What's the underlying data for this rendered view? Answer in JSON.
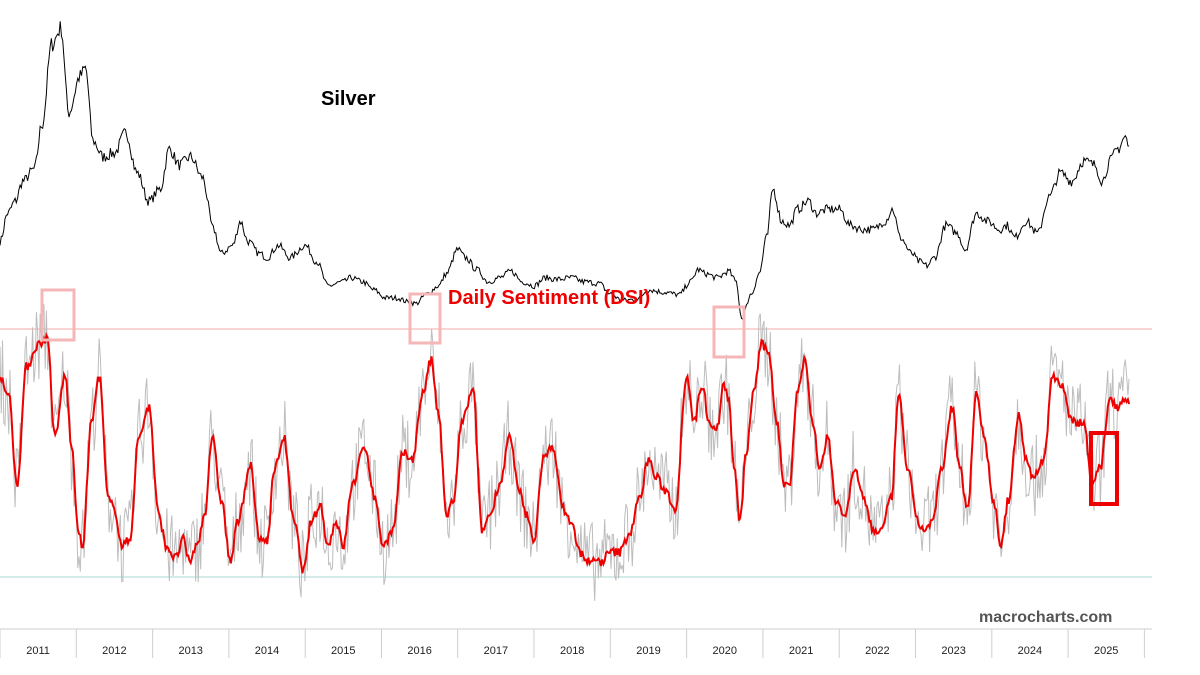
{
  "chart_data": {
    "type": "line",
    "silver_label": "Silver",
    "dsi_label": "Daily Sentiment (DSI)",
    "watermark": "macrocharts.com",
    "x_tick_labels": [
      "2011",
      "2012",
      "2013",
      "2014",
      "2015",
      "2016",
      "2017",
      "2018",
      "2019",
      "2020",
      "2021",
      "2022",
      "2023",
      "2024",
      "2025"
    ],
    "x_range": [
      2010.5,
      2025.6
    ],
    "series": [
      {
        "name": "Silver",
        "color": "#000000",
        "ylim": [
          12,
          50
        ],
        "points": [
          [
            2010.5,
            21.5
          ],
          [
            2010.6,
            25.0
          ],
          [
            2010.7,
            26.5
          ],
          [
            2010.8,
            29.0
          ],
          [
            2010.95,
            30.5
          ],
          [
            2011.05,
            36.0
          ],
          [
            2011.18,
            46.0
          ],
          [
            2011.3,
            48.0
          ],
          [
            2011.4,
            37.5
          ],
          [
            2011.55,
            42.0
          ],
          [
            2011.62,
            43.0
          ],
          [
            2011.72,
            34.0
          ],
          [
            2011.85,
            32.0
          ],
          [
            2012.0,
            32.5
          ],
          [
            2012.15,
            35.0
          ],
          [
            2012.3,
            30.0
          ],
          [
            2012.45,
            26.5
          ],
          [
            2012.6,
            28.0
          ],
          [
            2012.72,
            33.0
          ],
          [
            2012.85,
            31.0
          ],
          [
            2013.0,
            32.0
          ],
          [
            2013.15,
            29.5
          ],
          [
            2013.3,
            23.0
          ],
          [
            2013.4,
            20.0
          ],
          [
            2013.55,
            21.0
          ],
          [
            2013.65,
            24.0
          ],
          [
            2013.75,
            21.5
          ],
          [
            2013.9,
            20.0
          ],
          [
            2014.0,
            19.5
          ],
          [
            2014.15,
            21.0
          ],
          [
            2014.3,
            19.5
          ],
          [
            2014.5,
            21.0
          ],
          [
            2014.65,
            19.0
          ],
          [
            2014.8,
            16.0
          ],
          [
            2015.0,
            16.5
          ],
          [
            2015.1,
            17.0
          ],
          [
            2015.25,
            16.5
          ],
          [
            2015.4,
            15.5
          ],
          [
            2015.55,
            14.5
          ],
          [
            2015.7,
            14.5
          ],
          [
            2015.85,
            14.0
          ],
          [
            2015.95,
            13.8
          ],
          [
            2016.1,
            15.0
          ],
          [
            2016.25,
            16.0
          ],
          [
            2016.35,
            17.5
          ],
          [
            2016.5,
            20.5
          ],
          [
            2016.6,
            19.5
          ],
          [
            2016.75,
            18.0
          ],
          [
            2016.9,
            16.5
          ],
          [
            2017.05,
            17.0
          ],
          [
            2017.2,
            17.8
          ],
          [
            2017.35,
            16.5
          ],
          [
            2017.5,
            16.0
          ],
          [
            2017.65,
            17.0
          ],
          [
            2017.8,
            16.8
          ],
          [
            2018.0,
            17.0
          ],
          [
            2018.15,
            16.5
          ],
          [
            2018.35,
            16.3
          ],
          [
            2018.5,
            15.0
          ],
          [
            2018.65,
            14.2
          ],
          [
            2018.85,
            14.3
          ],
          [
            2019.0,
            15.5
          ],
          [
            2019.2,
            15.2
          ],
          [
            2019.4,
            14.9
          ],
          [
            2019.55,
            16.5
          ],
          [
            2019.65,
            18.0
          ],
          [
            2019.75,
            17.5
          ],
          [
            2019.9,
            17.0
          ],
          [
            2020.05,
            17.8
          ],
          [
            2020.15,
            16.5
          ],
          [
            2020.22,
            12.0
          ],
          [
            2020.35,
            15.0
          ],
          [
            2020.45,
            17.5
          ],
          [
            2020.55,
            22.0
          ],
          [
            2020.63,
            28.0
          ],
          [
            2020.75,
            24.0
          ],
          [
            2020.85,
            23.5
          ],
          [
            2020.95,
            25.5
          ],
          [
            2021.1,
            26.5
          ],
          [
            2021.2,
            25.0
          ],
          [
            2021.35,
            25.5
          ],
          [
            2021.5,
            25.5
          ],
          [
            2021.65,
            23.5
          ],
          [
            2021.8,
            23.0
          ],
          [
            2021.95,
            23.0
          ],
          [
            2022.1,
            24.0
          ],
          [
            2022.2,
            25.5
          ],
          [
            2022.3,
            22.0
          ],
          [
            2022.45,
            20.0
          ],
          [
            2022.55,
            19.0
          ],
          [
            2022.65,
            18.5
          ],
          [
            2022.75,
            19.5
          ],
          [
            2022.9,
            23.5
          ],
          [
            2023.05,
            22.5
          ],
          [
            2023.15,
            20.5
          ],
          [
            2023.3,
            25.0
          ],
          [
            2023.45,
            24.0
          ],
          [
            2023.6,
            23.0
          ],
          [
            2023.7,
            23.5
          ],
          [
            2023.8,
            22.0
          ],
          [
            2023.95,
            24.0
          ],
          [
            2024.1,
            22.5
          ],
          [
            2024.25,
            27.0
          ],
          [
            2024.4,
            30.0
          ],
          [
            2024.55,
            29.0
          ],
          [
            2024.7,
            31.5
          ],
          [
            2024.85,
            31.0
          ],
          [
            2024.95,
            29.0
          ],
          [
            2025.05,
            31.5
          ],
          [
            2025.15,
            33.0
          ],
          [
            2025.25,
            34.5
          ],
          [
            2025.3,
            33.0
          ]
        ]
      },
      {
        "name": "Daily Sentiment (DSI)",
        "color": "#ee0000",
        "ylim": [
          0,
          100
        ],
        "extreme_high_line": 90,
        "extreme_low_line": 10,
        "points": [
          [
            2010.5,
            75
          ],
          [
            2010.62,
            68
          ],
          [
            2010.72,
            40
          ],
          [
            2010.85,
            78
          ],
          [
            2011.0,
            85
          ],
          [
            2011.12,
            87
          ],
          [
            2011.22,
            55
          ],
          [
            2011.35,
            75
          ],
          [
            2011.45,
            50
          ],
          [
            2011.52,
            25
          ],
          [
            2011.58,
            20
          ],
          [
            2011.7,
            60
          ],
          [
            2011.8,
            75
          ],
          [
            2011.92,
            35
          ],
          [
            2012.0,
            32
          ],
          [
            2012.1,
            20
          ],
          [
            2012.2,
            22
          ],
          [
            2012.32,
            55
          ],
          [
            2012.45,
            65
          ],
          [
            2012.58,
            30
          ],
          [
            2012.68,
            20
          ],
          [
            2012.8,
            16
          ],
          [
            2012.9,
            22
          ],
          [
            2012.98,
            15
          ],
          [
            2013.08,
            20
          ],
          [
            2013.18,
            30
          ],
          [
            2013.28,
            55
          ],
          [
            2013.4,
            35
          ],
          [
            2013.52,
            15
          ],
          [
            2013.62,
            28
          ],
          [
            2013.78,
            46
          ],
          [
            2013.9,
            22
          ],
          [
            2014.0,
            22
          ],
          [
            2014.1,
            45
          ],
          [
            2014.22,
            55
          ],
          [
            2014.35,
            28
          ],
          [
            2014.48,
            12
          ],
          [
            2014.58,
            28
          ],
          [
            2014.7,
            33
          ],
          [
            2014.8,
            20
          ],
          [
            2014.9,
            28
          ],
          [
            2015.0,
            20
          ],
          [
            2015.12,
            40
          ],
          [
            2015.28,
            52
          ],
          [
            2015.42,
            35
          ],
          [
            2015.52,
            20
          ],
          [
            2015.65,
            25
          ],
          [
            2015.78,
            50
          ],
          [
            2015.9,
            48
          ],
          [
            2016.05,
            70
          ],
          [
            2016.15,
            80
          ],
          [
            2016.25,
            62
          ],
          [
            2016.35,
            30
          ],
          [
            2016.45,
            35
          ],
          [
            2016.55,
            60
          ],
          [
            2016.7,
            70
          ],
          [
            2016.82,
            25
          ],
          [
            2016.92,
            30
          ],
          [
            2017.05,
            40
          ],
          [
            2017.18,
            55
          ],
          [
            2017.3,
            38
          ],
          [
            2017.4,
            30
          ],
          [
            2017.5,
            22
          ],
          [
            2017.62,
            48
          ],
          [
            2017.75,
            52
          ],
          [
            2017.88,
            32
          ],
          [
            2017.98,
            28
          ],
          [
            2018.1,
            18
          ],
          [
            2018.22,
            15
          ],
          [
            2018.38,
            15
          ],
          [
            2018.5,
            18
          ],
          [
            2018.62,
            18
          ],
          [
            2018.75,
            24
          ],
          [
            2018.88,
            35
          ],
          [
            2019.0,
            48
          ],
          [
            2019.1,
            42
          ],
          [
            2019.22,
            38
          ],
          [
            2019.35,
            32
          ],
          [
            2019.5,
            75
          ],
          [
            2019.6,
            60
          ],
          [
            2019.7,
            72
          ],
          [
            2019.8,
            60
          ],
          [
            2019.9,
            58
          ],
          [
            2019.98,
            72
          ],
          [
            2020.05,
            68
          ],
          [
            2020.12,
            45
          ],
          [
            2020.2,
            28
          ],
          [
            2020.28,
            50
          ],
          [
            2020.38,
            70
          ],
          [
            2020.48,
            85
          ],
          [
            2020.58,
            82
          ],
          [
            2020.68,
            60
          ],
          [
            2020.78,
            40
          ],
          [
            2020.85,
            40
          ],
          [
            2020.95,
            70
          ],
          [
            2021.05,
            80
          ],
          [
            2021.15,
            60
          ],
          [
            2021.25,
            45
          ],
          [
            2021.35,
            55
          ],
          [
            2021.45,
            35
          ],
          [
            2021.58,
            30
          ],
          [
            2021.7,
            45
          ],
          [
            2021.82,
            35
          ],
          [
            2021.95,
            25
          ],
          [
            2022.05,
            25
          ],
          [
            2022.18,
            35
          ],
          [
            2022.28,
            68
          ],
          [
            2022.4,
            45
          ],
          [
            2022.52,
            28
          ],
          [
            2022.62,
            25
          ],
          [
            2022.72,
            28
          ],
          [
            2022.85,
            45
          ],
          [
            2022.98,
            65
          ],
          [
            2023.08,
            45
          ],
          [
            2023.18,
            32
          ],
          [
            2023.3,
            70
          ],
          [
            2023.4,
            55
          ],
          [
            2023.52,
            35
          ],
          [
            2023.62,
            20
          ],
          [
            2023.72,
            35
          ],
          [
            2023.85,
            62
          ],
          [
            2023.95,
            48
          ],
          [
            2024.05,
            42
          ],
          [
            2024.18,
            48
          ],
          [
            2024.3,
            75
          ],
          [
            2024.42,
            72
          ],
          [
            2024.55,
            60
          ],
          [
            2024.7,
            60
          ],
          [
            2024.82,
            40
          ],
          [
            2024.92,
            45
          ],
          [
            2025.05,
            68
          ],
          [
            2025.15,
            65
          ],
          [
            2025.25,
            68
          ],
          [
            2025.3,
            67
          ]
        ]
      }
    ],
    "annotations": [
      {
        "type": "light-red-box",
        "label": "2011 sentiment extreme"
      },
      {
        "type": "light-red-box",
        "label": "2016 sentiment extreme"
      },
      {
        "type": "light-red-box",
        "label": "2020 sentiment extreme"
      },
      {
        "type": "red-box",
        "label": "2025 current reading"
      }
    ]
  }
}
